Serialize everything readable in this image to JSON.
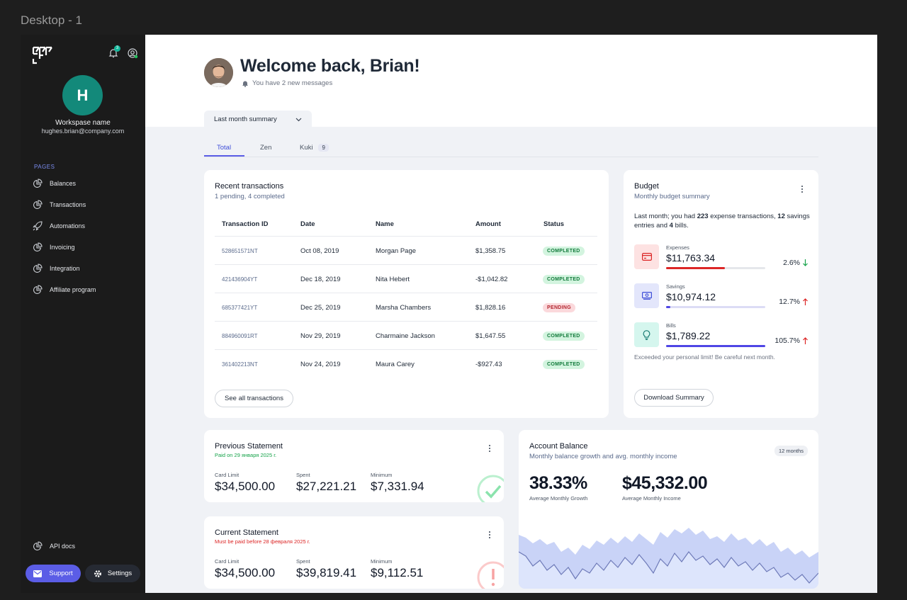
{
  "frame": {
    "title": "Desktop - 1"
  },
  "sidebar": {
    "notification_count": "3",
    "avatar_letter": "H",
    "workspace_name": "Workspase name",
    "email": "hughes.brian@company.com",
    "pages_label": "PAGES",
    "items": [
      {
        "label": "Balances",
        "icon": "chart-pie-icon"
      },
      {
        "label": "Transactions",
        "icon": "chart-pie-icon"
      },
      {
        "label": "Automations",
        "icon": "rocket-icon"
      },
      {
        "label": "Invoicing",
        "icon": "chart-pie-icon"
      },
      {
        "label": "Integration",
        "icon": "chart-pie-icon"
      },
      {
        "label": "Affiliate program",
        "icon": "chart-pie-icon"
      }
    ],
    "api_docs": "API docs",
    "support_label": "Support",
    "settings_label": "Settings"
  },
  "header": {
    "welcome": "Welcome back, Brian!",
    "messages": "You have 2 new messages",
    "summary_select": "Last month summary"
  },
  "tabs": [
    {
      "label": "Total"
    },
    {
      "label": "Zen"
    },
    {
      "label": "Kuki",
      "badge": "9"
    }
  ],
  "transactions": {
    "title": "Recent transactions",
    "subtitle": "1 pending, 4 completed",
    "columns": [
      "Transaction ID",
      "Date",
      "Name",
      "Amount",
      "Status"
    ],
    "rows": [
      {
        "id": "528651571NT",
        "date": "Oct 08, 2019",
        "name": "Morgan Page",
        "amount": "$1,358.75",
        "status": "COMPLETED"
      },
      {
        "id": "421436904YT",
        "date": "Dec 18, 2019",
        "name": "Nita Hebert",
        "amount": "-$1,042.82",
        "status": "COMPLETED"
      },
      {
        "id": "685377421YT",
        "date": "Dec 25, 2019",
        "name": "Marsha Chambers",
        "amount": "$1,828.16",
        "status": "PENDING"
      },
      {
        "id": "884960091RT",
        "date": "Nov 29, 2019",
        "name": "Charmaine Jackson",
        "amount": "$1,647.55",
        "status": "COMPLETED"
      },
      {
        "id": "361402213NT",
        "date": "Nov 24, 2019",
        "name": "Maura Carey",
        "amount": "-$927.43",
        "status": "COMPLETED"
      }
    ],
    "see_all": "See all transactions"
  },
  "budget": {
    "title": "Budget",
    "subtitle": "Monthly budget summary",
    "text_1": "Last month; you had ",
    "count_expense": "223",
    "text_2": " expense transactions, ",
    "count_savings": "12",
    "text_3": " savings entries and ",
    "count_bills": "4",
    "text_4": " bills.",
    "items": [
      {
        "label": "Expenses",
        "value": "$11,763.34",
        "pct": "2.6%",
        "progress": 0.59,
        "color": "#dc2626",
        "bg": "#fde2e2",
        "icon_color": "#dc2626",
        "icon": "credit-card-icon",
        "trend": "down",
        "trend_color": "#16a34a"
      },
      {
        "label": "Savings",
        "value": "$10,974.12",
        "pct": "12.7%",
        "progress": 0.04,
        "color": "#4f46e5",
        "bg": "#e3e6fb",
        "icon_color": "#3f4fd8",
        "icon": "money-icon",
        "trend": "up",
        "trend_color": "#dc2626"
      },
      {
        "label": "Bills",
        "value": "$1,789.22",
        "pct": "105.7%",
        "progress": 1.0,
        "color": "#4f46e5",
        "bg": "#d5f6ee",
        "icon_color": "#0f766e",
        "icon": "lightbulb-icon",
        "trend": "up",
        "trend_color": "#dc2626"
      }
    ],
    "warning": "Exceeded your personal limit! Be careful next month.",
    "download": "Download Summary"
  },
  "previous_statement": {
    "title": "Previous Statement",
    "subtitle": "Paid on 29 января 2025 г.",
    "subtitle_color": "#16a34a",
    "card_limit_label": "Card Limit",
    "card_limit": "$34,500.00",
    "spent_label": "Spent",
    "spent": "$27,221.21",
    "minimum_label": "Minimum",
    "minimum": "$7,331.94"
  },
  "current_statement": {
    "title": "Current Statement",
    "subtitle": "Must be paid before 28 февраля 2025 г.",
    "subtitle_color": "#dc2626",
    "card_limit_label": "Card Limit",
    "card_limit": "$34,500.00",
    "spent_label": "Spent",
    "spent": "$39,819.41",
    "minimum_label": "Minimum",
    "minimum": "$9,112.51"
  },
  "account_balance": {
    "title": "Account Balance",
    "subtitle": "Monthly balance growth and avg. monthly income",
    "period": "12 months",
    "growth": "38.33%",
    "growth_label": "Average Monthly Growth",
    "income": "$45,332.00",
    "income_label": "Average Monthly Income"
  },
  "colors": {
    "accent": "#5b5de6",
    "teal": "#13897a"
  }
}
